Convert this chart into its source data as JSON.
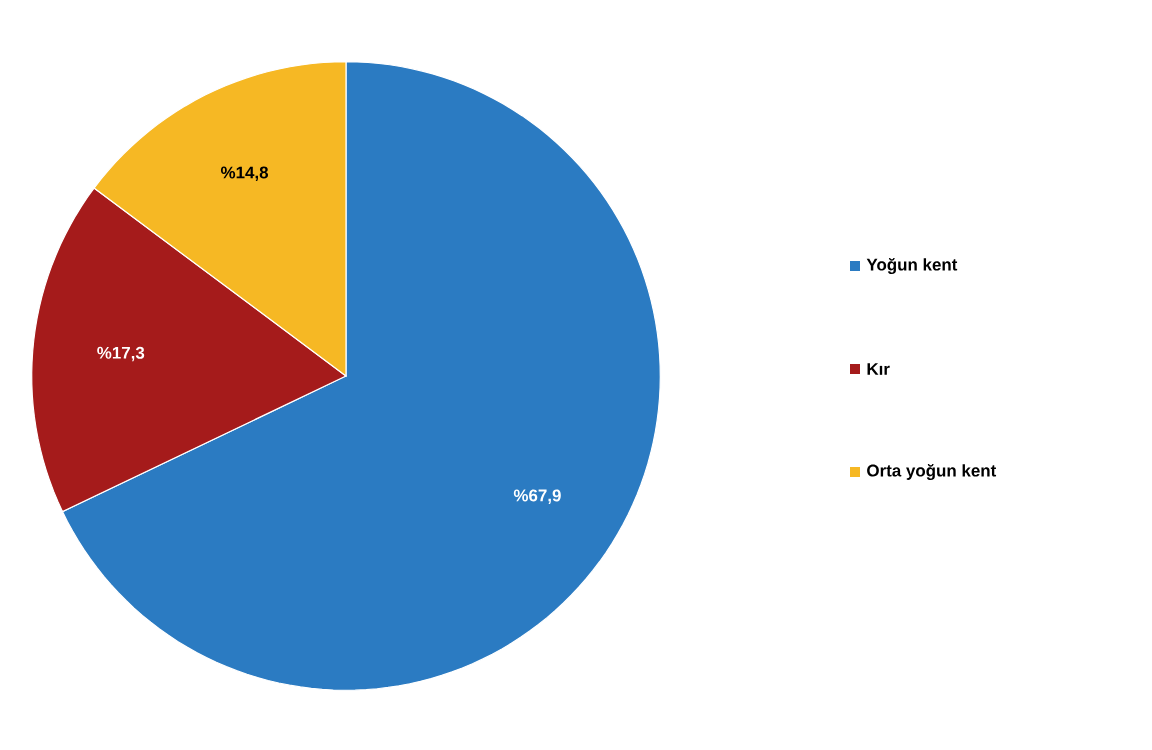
{
  "chart_data": {
    "type": "pie",
    "categories": [
      "Yoğun kent",
      "Kır",
      "Orta yoğun kent"
    ],
    "values": [
      67.9,
      17.3,
      14.8
    ],
    "value_labels": [
      "%67,9",
      "%17,3",
      "%14,8"
    ],
    "colors": [
      "#2b7bc2",
      "#a51b1b",
      "#f6b824"
    ],
    "legend": "right"
  }
}
